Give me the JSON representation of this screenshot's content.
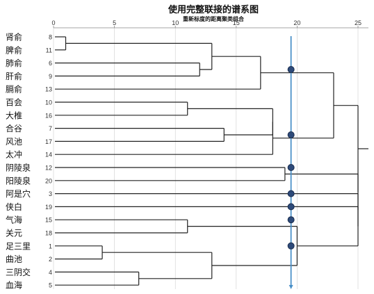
{
  "chart_data": {
    "type": "dendrogram",
    "title": "使用完整联接的谱系图",
    "subtitle": "重新标度的距离聚类组合",
    "x_ticks": [
      0,
      5,
      10,
      15,
      20,
      25
    ],
    "xlim": [
      0,
      26.5
    ],
    "cut_line": 19.5,
    "colors": {
      "tree": "#222222",
      "cut_line": "#4a90c8",
      "marker": "#2d4a7a",
      "grid": "#cccccc"
    },
    "leaves": [
      {
        "label": "肾俞",
        "id": "8"
      },
      {
        "label": "脾俞",
        "id": "11"
      },
      {
        "label": "肺俞",
        "id": "6"
      },
      {
        "label": "肝俞",
        "id": "9"
      },
      {
        "label": "膈俞",
        "id": "13"
      },
      {
        "label": "百会",
        "id": "10"
      },
      {
        "label": "大椎",
        "id": "16"
      },
      {
        "label": "合谷",
        "id": "7"
      },
      {
        "label": "风池",
        "id": "17"
      },
      {
        "label": "太冲",
        "id": "14"
      },
      {
        "label": "阴陵泉",
        "id": "12"
      },
      {
        "label": "阳陵泉",
        "id": "20"
      },
      {
        "label": "阿是穴",
        "id": "3"
      },
      {
        "label": "侠白",
        "id": "19"
      },
      {
        "label": "气海",
        "id": "15"
      },
      {
        "label": "关元",
        "id": "18"
      },
      {
        "label": "足三里",
        "id": "1"
      },
      {
        "label": "曲池",
        "id": "2"
      },
      {
        "label": "三阴交",
        "id": "4"
      },
      {
        "label": "血海",
        "id": "5"
      }
    ],
    "merges": [
      {
        "a": "L0",
        "b": "L1",
        "h": 1.0
      },
      {
        "a": "L2",
        "b": "L3",
        "h": 12.0
      },
      {
        "a": "N0",
        "b": "N1",
        "h": 13.0
      },
      {
        "a": "N2",
        "b": "L4",
        "h": 17.0
      },
      {
        "a": "L5",
        "b": "L6",
        "h": 11.0
      },
      {
        "a": "L7",
        "b": "L8",
        "h": 14.0
      },
      {
        "a": "N4",
        "b": "N5",
        "h": 18.0
      },
      {
        "a": "N6",
        "b": "L9",
        "h": 18.0
      },
      {
        "a": "N3",
        "b": "N7",
        "h": 23.0
      },
      {
        "a": "L10",
        "b": "L11",
        "h": 19.0
      },
      {
        "a": "L14",
        "b": "L15",
        "h": 11.0
      },
      {
        "a": "L16",
        "b": "L17",
        "h": 4.0
      },
      {
        "a": "L18",
        "b": "L19",
        "h": 7.0
      },
      {
        "a": "N11",
        "b": "N12",
        "h": 13.0
      },
      {
        "a": "N10",
        "b": "N13",
        "h": 20.0
      },
      {
        "a": "L13",
        "b": "N14",
        "h": 25.0
      },
      {
        "a": "L12",
        "b": "N15",
        "h": 25.0
      },
      {
        "a": "N9",
        "b": "N16",
        "h": 25.0
      },
      {
        "a": "N8",
        "b": "N17",
        "h": 25.0
      }
    ],
    "cut_markers": [
      "N1",
      "N5",
      "L10",
      "L12",
      "L13",
      "L14",
      "L16"
    ]
  }
}
